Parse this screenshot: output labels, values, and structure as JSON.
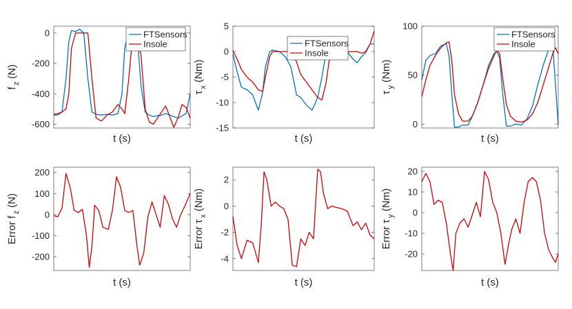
{
  "colors": {
    "ftsensors": "#0072bd",
    "insole": "#cc0000",
    "axis": "#262626"
  },
  "chart_data": [
    {
      "type": "line",
      "title": "",
      "xlabel": "t (s)",
      "ylabel_main": "f",
      "ylabel_sub": "z",
      "ylabel_unit": " (N)",
      "ylabel_prefix": "",
      "ylim": [
        -625,
        45
      ],
      "yticks": [
        0,
        -200,
        -400,
        -600
      ],
      "yticklabels": [
        "0",
        "-200",
        "-400",
        "-600"
      ],
      "legend": [
        "FTSensors",
        "Insole"
      ],
      "legend_position": "top-right",
      "x": [
        0,
        0.03,
        0.06,
        0.09,
        0.11,
        0.13,
        0.16,
        0.19,
        0.22,
        0.25,
        0.28,
        0.31,
        0.35,
        0.39,
        0.43,
        0.47,
        0.5,
        0.52,
        0.55,
        0.58,
        0.61,
        0.64,
        0.67,
        0.7,
        0.73,
        0.76,
        0.79,
        0.82,
        0.85,
        0.88,
        0.91,
        0.94,
        0.97,
        1.0
      ],
      "series": [
        {
          "name": "FTSensors",
          "values": [
            -540,
            -540,
            -520,
            -300,
            -60,
            15,
            10,
            25,
            0,
            -300,
            -520,
            -535,
            -540,
            -535,
            -540,
            -530,
            -400,
            -100,
            10,
            20,
            0,
            -350,
            -520,
            -540,
            -550,
            -545,
            -540,
            -530,
            -540,
            -550,
            -560,
            -545,
            -530,
            -400
          ]
        },
        {
          "name": "Insole",
          "values": [
            -535,
            -530,
            -520,
            -500,
            -400,
            -100,
            0,
            0,
            0,
            0,
            -300,
            -560,
            -580,
            -540,
            -520,
            -470,
            -500,
            -530,
            -300,
            0,
            0,
            -150,
            -500,
            -585,
            -600,
            -560,
            -520,
            -480,
            -550,
            -620,
            -560,
            -470,
            -490,
            -560
          ]
        }
      ]
    },
    {
      "type": "line",
      "title": "",
      "xlabel": "t (s)",
      "ylabel_main": "τ",
      "ylabel_sub": "x",
      "ylabel_unit": " (Nm)",
      "ylabel_prefix": "",
      "ylim": [
        -15,
        5
      ],
      "yticks": [
        5,
        0,
        -5,
        -10,
        -15
      ],
      "yticklabels": [
        "5",
        "0",
        "-5",
        "-10",
        "-15"
      ],
      "legend": [
        "FTSensors",
        "Insole"
      ],
      "legend_position": "top-right",
      "x": [
        0,
        0.03,
        0.06,
        0.1,
        0.14,
        0.18,
        0.21,
        0.23,
        0.26,
        0.28,
        0.3,
        0.33,
        0.37,
        0.41,
        0.45,
        0.48,
        0.52,
        0.56,
        0.6,
        0.63,
        0.66,
        0.68,
        0.7,
        0.73,
        0.77,
        0.81,
        0.85,
        0.88,
        0.91,
        0.94,
        0.97,
        1.0
      ],
      "series": [
        {
          "name": "FTSensors",
          "values": [
            -0.5,
            -4,
            -7,
            -7.5,
            -8.5,
            -11.5,
            -8,
            -3,
            0,
            0.3,
            0.2,
            0,
            -1,
            -3,
            -8.5,
            -9,
            -10.5,
            -11.5,
            -9,
            -5,
            0,
            0.2,
            0.2,
            0,
            0,
            0,
            -1.5,
            -2.2,
            -1,
            -0.2,
            1.5,
            1.5
          ]
        },
        {
          "name": "Insole",
          "values": [
            0.2,
            -1.5,
            -3.5,
            -5,
            -6,
            -7.5,
            -7.8,
            -5,
            -1,
            0,
            0,
            0,
            0,
            0.2,
            -2,
            -4.5,
            -6,
            -7.5,
            -9,
            -9.5,
            -6,
            -2,
            0,
            0,
            0,
            0,
            0,
            0,
            -0.3,
            0,
            1.5,
            4
          ]
        }
      ]
    },
    {
      "type": "line",
      "title": "",
      "xlabel": "t (s)",
      "ylabel_main": "τ",
      "ylabel_sub": "y",
      "ylabel_unit": " (Nm)",
      "ylabel_prefix": "",
      "ylim": [
        -4,
        100
      ],
      "yticks": [
        100,
        50,
        0
      ],
      "yticklabels": [
        "100",
        "50",
        "0"
      ],
      "legend": [
        "FTSensors",
        "Insole"
      ],
      "legend_position": "top-right",
      "x": [
        0,
        0.03,
        0.06,
        0.1,
        0.14,
        0.18,
        0.2,
        0.22,
        0.24,
        0.27,
        0.3,
        0.34,
        0.37,
        0.41,
        0.45,
        0.49,
        0.53,
        0.55,
        0.57,
        0.59,
        0.62,
        0.65,
        0.69,
        0.73,
        0.77,
        0.81,
        0.85,
        0.89,
        0.93,
        0.96,
        0.98,
        1.0
      ],
      "series": [
        {
          "name": "FTSensors",
          "values": [
            45,
            65,
            70,
            72,
            80,
            82,
            70,
            30,
            -3,
            -3,
            -1,
            -1,
            8,
            22,
            40,
            60,
            72,
            74,
            68,
            35,
            -2,
            -2,
            0,
            -1,
            5,
            18,
            40,
            60,
            76,
            80,
            40,
            0
          ]
        },
        {
          "name": "Insole",
          "values": [
            28,
            45,
            60,
            70,
            78,
            83,
            84,
            65,
            30,
            10,
            3,
            3,
            8,
            22,
            40,
            57,
            70,
            76,
            72,
            50,
            20,
            8,
            3,
            2,
            4,
            10,
            22,
            40,
            58,
            72,
            78,
            72
          ]
        }
      ]
    },
    {
      "type": "line",
      "title": "",
      "xlabel": "t (s)",
      "ylabel_main": "f",
      "ylabel_sub": "z",
      "ylabel_unit": " (N)",
      "ylabel_prefix": "Error ",
      "ylim": [
        -265,
        225
      ],
      "yticks": [
        200,
        100,
        0,
        -100,
        -200
      ],
      "yticklabels": [
        "200",
        "100",
        "0",
        "-100",
        "-200"
      ],
      "legend": [],
      "legend_position": "none",
      "x": [
        0,
        0.03,
        0.06,
        0.09,
        0.12,
        0.15,
        0.18,
        0.21,
        0.24,
        0.26,
        0.28,
        0.3,
        0.33,
        0.36,
        0.4,
        0.43,
        0.46,
        0.49,
        0.52,
        0.55,
        0.58,
        0.61,
        0.63,
        0.66,
        0.69,
        0.72,
        0.75,
        0.78,
        0.81,
        0.84,
        0.87,
        0.9,
        0.93,
        0.96,
        1.0
      ],
      "series": [
        {
          "name": "Error",
          "values": [
            -5,
            -10,
            30,
            195,
            130,
            20,
            10,
            25,
            -100,
            -250,
            -150,
            45,
            20,
            -60,
            -70,
            20,
            180,
            130,
            20,
            10,
            20,
            -150,
            -240,
            -180,
            -10,
            60,
            0,
            -60,
            90,
            50,
            -20,
            -60,
            0,
            40,
            100
          ]
        }
      ]
    },
    {
      "type": "line",
      "title": "",
      "xlabel": "t (s)",
      "ylabel_main": "τ",
      "ylabel_sub": "x",
      "ylabel_unit": " (Nm)",
      "ylabel_prefix": "Error ",
      "ylim": [
        -4.9,
        2.95
      ],
      "yticks": [
        2,
        0,
        -2,
        -4
      ],
      "yticklabels": [
        "2",
        "0",
        "-2",
        "-4"
      ],
      "legend": [],
      "legend_position": "none",
      "x": [
        0,
        0.03,
        0.06,
        0.1,
        0.14,
        0.18,
        0.2,
        0.22,
        0.24,
        0.27,
        0.3,
        0.33,
        0.36,
        0.39,
        0.42,
        0.45,
        0.48,
        0.51,
        0.54,
        0.57,
        0.6,
        0.62,
        0.64,
        0.67,
        0.7,
        0.73,
        0.77,
        0.81,
        0.85,
        0.88,
        0.91,
        0.94,
        0.97,
        1.0
      ],
      "series": [
        {
          "name": "Error",
          "values": [
            -0.8,
            -3,
            -4,
            -2.6,
            -2.8,
            -4.3,
            -1.5,
            2.6,
            2,
            0,
            0.3,
            0,
            -0.2,
            -1,
            -4.5,
            -4.6,
            -2.5,
            -3,
            -2,
            -2.5,
            2.8,
            2.6,
            1,
            -0.2,
            0,
            -0.1,
            -0.2,
            -0.4,
            -1.5,
            -1.2,
            -1.8,
            -1.3,
            -2.2,
            -2.5
          ]
        }
      ]
    },
    {
      "type": "line",
      "title": "",
      "xlabel": "t (s)",
      "ylabel_main": "τ",
      "ylabel_sub": "y",
      "ylabel_unit": " (Nm)",
      "ylabel_prefix": "Error ",
      "ylim": [
        -28,
        22
      ],
      "yticks": [
        20,
        10,
        0,
        -10,
        -20
      ],
      "yticklabels": [
        "20",
        "10",
        "0",
        "-10",
        "-20"
      ],
      "legend": [],
      "legend_position": "none",
      "x": [
        0,
        0.03,
        0.06,
        0.09,
        0.12,
        0.15,
        0.18,
        0.21,
        0.23,
        0.25,
        0.28,
        0.31,
        0.34,
        0.37,
        0.4,
        0.43,
        0.46,
        0.49,
        0.52,
        0.55,
        0.58,
        0.61,
        0.64,
        0.66,
        0.69,
        0.72,
        0.75,
        0.78,
        0.81,
        0.84,
        0.87,
        0.9,
        0.93,
        0.96,
        0.98,
        1.0
      ],
      "series": [
        {
          "name": "Error",
          "values": [
            15,
            19,
            15,
            4,
            6,
            5,
            -5,
            -20,
            -28,
            -10,
            -5,
            -3,
            -7,
            -1,
            5,
            -2,
            20,
            16,
            5,
            0,
            -10,
            -25,
            -14,
            -8,
            -3,
            -10,
            5,
            15,
            17,
            15,
            6,
            -10,
            -18,
            -22,
            -24,
            -20
          ]
        }
      ]
    }
  ]
}
